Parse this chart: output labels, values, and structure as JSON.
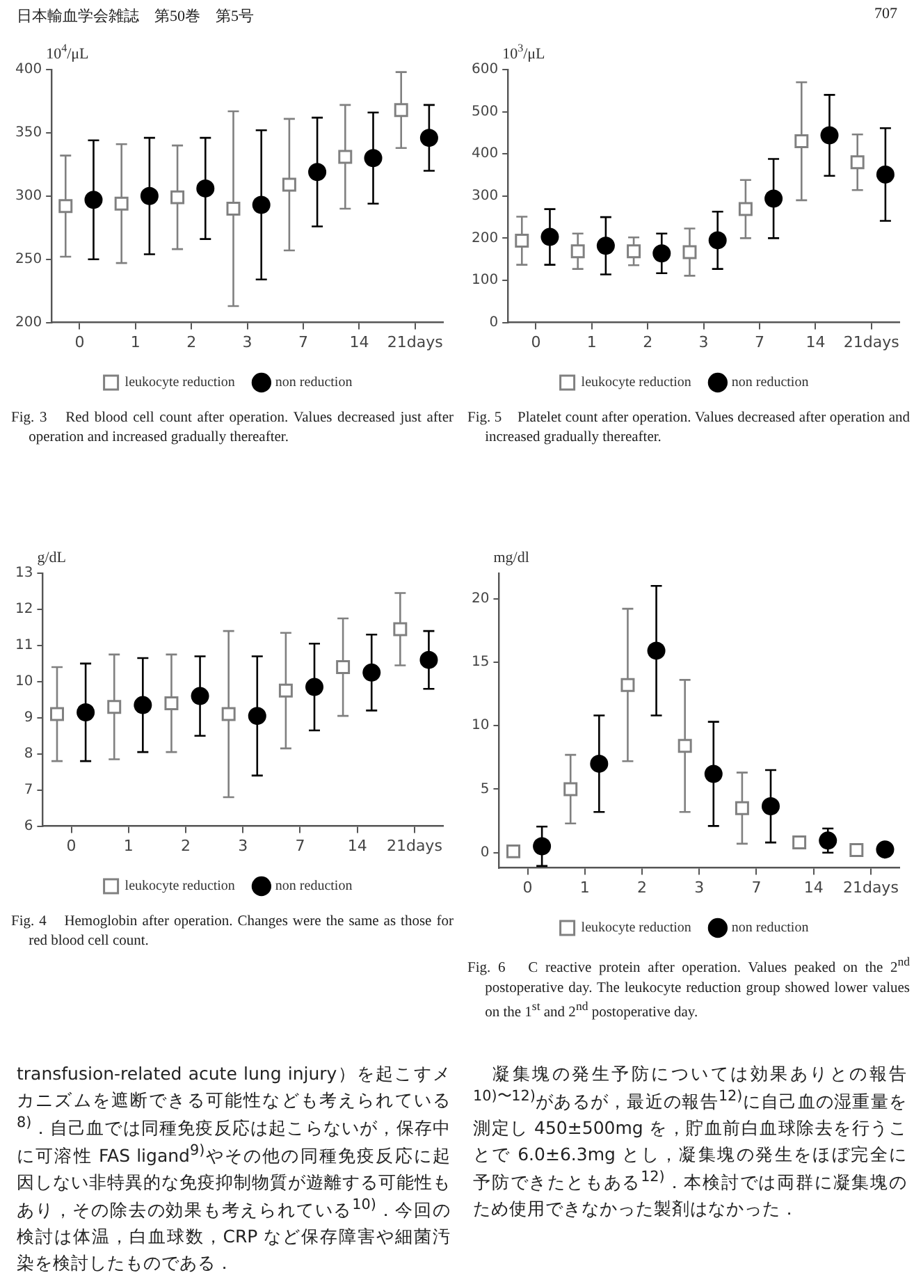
{
  "chart_data": [
    {
      "type": "other",
      "annotations": [
        "日本輸血学会雑誌　第50巻　第5号",
        "707"
      ]
    },
    {
      "type": "scatter",
      "ylabel": "10$^{4}$/μL",
      "categories": [
        "0",
        "1",
        "2",
        "3",
        "7",
        "14",
        "21days"
      ],
      "ylim": [
        200,
        400
      ],
      "yticks": [
        200,
        250,
        300,
        350,
        400
      ],
      "grid": false,
      "legend": "bottom",
      "series": [
        {
          "name": "leukocyte reduction",
          "color": "#808080",
          "marker": "square",
          "values": [
            292,
            294,
            299,
            290,
            309,
            331,
            368
          ],
          "errors": [
            40,
            47,
            41,
            77,
            52,
            41,
            30
          ]
        },
        {
          "name": "non reduction",
          "color": "#000000",
          "marker": "circle",
          "values": [
            297,
            300,
            306,
            293,
            319,
            330,
            346
          ],
          "errors": [
            47,
            46,
            40,
            59,
            43,
            36,
            26
          ]
        }
      ],
      "annotations": [
        "Fig. 3　Red blood cell count after operation. Values decreased just after operation and increased gradually thereafter."
      ]
    },
    {
      "type": "scatter",
      "ylabel": "10$^{3}$/μL",
      "categories": [
        "0",
        "1",
        "2",
        "3",
        "7",
        "14",
        "21days"
      ],
      "ylim": [
        0,
        600
      ],
      "yticks": [
        0,
        100,
        200,
        300,
        400,
        500,
        600
      ],
      "grid": false,
      "legend": "bottom",
      "series": [
        {
          "name": "leukocyte reduction",
          "color": "#808080",
          "marker": "square",
          "values": [
            194,
            169,
            169,
            167,
            269,
            430,
            380
          ],
          "errors": [
            57,
            42,
            33,
            56,
            69,
            140,
            66
          ]
        },
        {
          "name": "non reduction",
          "color": "#000000",
          "marker": "circle",
          "values": [
            203,
            182,
            164,
            195,
            294,
            444,
            351
          ],
          "errors": [
            66,
            68,
            47,
            68,
            94,
            96,
            110
          ]
        }
      ],
      "annotations": [
        "Fig. 5　Platelet count after operation. Values decreased after operation and increased gradually thereafter."
      ]
    },
    {
      "type": "scatter",
      "ylabel": "g/dL",
      "categories": [
        "0",
        "1",
        "2",
        "3",
        "7",
        "14",
        "21days"
      ],
      "ylim": [
        6,
        13
      ],
      "yticks": [
        6,
        7,
        8,
        9,
        10,
        11,
        12,
        13
      ],
      "grid": false,
      "legend": "bottom",
      "series": [
        {
          "name": "leukocyte reduction",
          "color": "#808080",
          "marker": "square",
          "values": [
            9.1,
            9.3,
            9.4,
            9.1,
            9.75,
            10.4,
            11.45
          ],
          "errors": [
            1.3,
            1.45,
            1.35,
            2.3,
            1.6,
            1.35,
            1.0
          ]
        },
        {
          "name": "non reduction",
          "color": "#000000",
          "marker": "circle",
          "values": [
            9.15,
            9.35,
            9.6,
            9.05,
            9.85,
            10.25,
            10.6
          ],
          "errors": [
            1.35,
            1.3,
            1.1,
            1.65,
            1.2,
            1.05,
            0.8
          ]
        }
      ],
      "annotations": [
        "Fig. 4　Hemoglobin after operation. Changes were the same as those for red blood cell count."
      ]
    },
    {
      "type": "scatter",
      "ylabel": "mg/dl",
      "categories": [
        "0",
        "1",
        "2",
        "3",
        "7",
        "14",
        "21days"
      ],
      "ylim": [
        -1.2,
        22
      ],
      "yticks": [
        0,
        5,
        10,
        15,
        20
      ],
      "grid": false,
      "legend": "bottom",
      "series": [
        {
          "name": "leukocyte reduction",
          "color": "#808080",
          "marker": "square",
          "values": [
            0.1,
            5.0,
            13.2,
            8.4,
            3.5,
            0.8,
            0.2
          ],
          "errors": [
            null,
            2.7,
            6.0,
            5.2,
            2.8,
            null,
            null
          ]
        },
        {
          "name": "non reduction",
          "color": "#000000",
          "marker": "circle",
          "values": [
            0.5,
            7.0,
            15.9,
            6.2,
            3.65,
            0.95,
            0.25
          ],
          "errors": [
            1.55,
            3.8,
            5.1,
            4.1,
            2.85,
            0.95,
            null
          ]
        }
      ],
      "annotations": [
        "Fig. 6　C reactive protein after operation. Values peaked on the 2$^{nd}$ postoperative day. The leukocyte reduction group showed lower values on the 1$^{st}$ and 2$^{nd}$ postoperative day."
      ]
    },
    {
      "type": "other",
      "annotations": [
        "transfusion-related acute lung injury）を起こすメカニズムを遮断できる可能性なども考えられている$^{8)}$．自己血では同種免疫反応は起こらないが，保存中に可溶性 FAS ligand$^{9)}$やその他の同種免疫反応に起因しない非特異的な免疫抑制物質が遊離する可能性もあり，その除去の効果も考えられている$^{10)}$．今回の検討は体温，白血球数，CRP など保存障害や細菌汚染を検討したものである．"
      ]
    },
    {
      "type": "other",
      "annotations": [
        "　凝集塊の発生予防については効果ありとの報告$^{10)〜12)}$があるが，最近の報告$^{12)}$に自己血の湿重量を測定し 450±500mg を，貯血前白血球除去を行うことで 6.0±6.3mg とし，凝集塊の発生をほぼ完全に予防できたともある$^{12)}$．本検討では両群に凝集塊のため使用できなかった製剤はなかった．"
      ]
    }
  ]
}
